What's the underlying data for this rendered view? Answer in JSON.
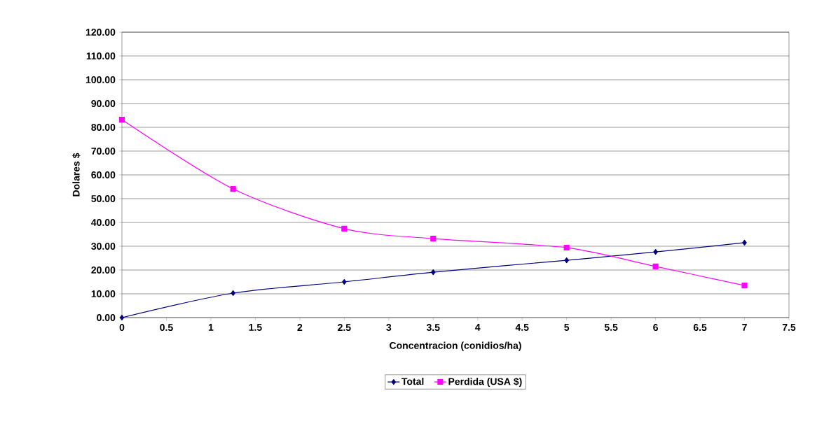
{
  "chart_data": {
    "type": "line",
    "xlabel": "Concentracion (conidios/ha)",
    "ylabel": "Dolares $",
    "x": [
      0,
      1.25,
      2.5,
      3.5,
      5,
      6,
      7
    ],
    "series": [
      {
        "name": "Total",
        "color": "#000080",
        "marker": "diamond",
        "values": [
          0,
          10.3,
          15.0,
          19.1,
          24.1,
          27.6,
          31.5
        ]
      },
      {
        "name": "Perdida (USA $)",
        "color": "#ff00ff",
        "marker": "square",
        "values": [
          83.2,
          54.1,
          37.4,
          33.2,
          29.4,
          21.5,
          13.5
        ]
      }
    ],
    "xlim": [
      0,
      7.5
    ],
    "xticks": [
      0,
      0.5,
      1,
      1.5,
      2,
      2.5,
      3,
      3.5,
      4,
      4.5,
      5,
      5.5,
      6,
      6.5,
      7,
      7.5
    ],
    "ylim": [
      0,
      120
    ],
    "yticks": [
      {
        "value": 0,
        "label": "0.00"
      },
      {
        "value": 10,
        "label": "10.00"
      },
      {
        "value": 20,
        "label": "20.00"
      },
      {
        "value": 30,
        "label": "30.00"
      },
      {
        "value": 40,
        "label": "40.00"
      },
      {
        "value": 50,
        "label": "50.00"
      },
      {
        "value": 60,
        "label": "60.00"
      },
      {
        "value": 70,
        "label": "70.00"
      },
      {
        "value": 80,
        "label": "80.00"
      },
      {
        "value": 90,
        "label": "90.00"
      },
      {
        "value": 100,
        "label": "100.00"
      },
      {
        "value": 110,
        "label": "110.00"
      },
      {
        "value": 120,
        "label": "120.00"
      }
    ],
    "grid": "y",
    "legend": "bottom"
  }
}
